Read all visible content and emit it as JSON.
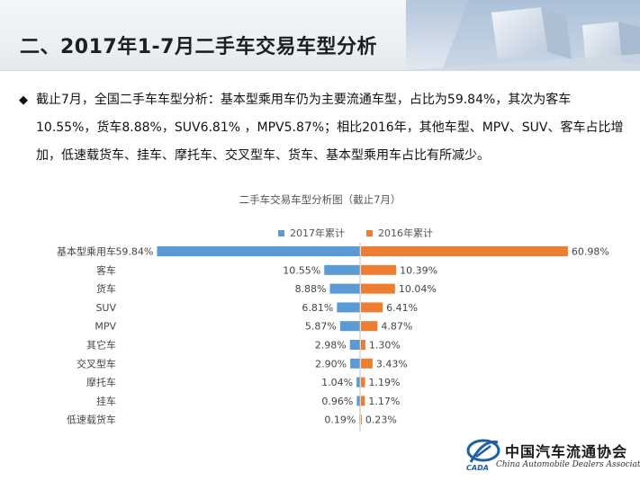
{
  "header": {
    "title": "二、2017年1-7月二手车交易车型分析"
  },
  "summary": {
    "text": "截止7月，全国二手车车型分析：基本型乘用车仍为主要流通车型，占比为59.84%，其次为客车10.55%，货车8.88%，SUV6.81% ，MPV5.87%；相比2016年，其他车型、MPV、SUV、客车占比增加，低速载货车、挂车、摩托车、交叉型车、货车、基本型乘用车占比有所减少。"
  },
  "colors": {
    "series_2017": "#5b9bd5",
    "series_2016": "#ed7d31"
  },
  "chart_data": {
    "type": "bar",
    "orientation": "horizontal-butterfly",
    "title": "二手车交易车型分析图（截止7月）",
    "categories": [
      "基本型乘用车",
      "客车",
      "货车",
      "SUV",
      "MPV",
      "其它车",
      "交叉型车",
      "摩托车",
      "挂车",
      "低速载货车"
    ],
    "series": [
      {
        "name": "2017年累计",
        "values": [
          59.84,
          10.55,
          8.88,
          6.81,
          5.87,
          2.98,
          2.9,
          1.04,
          0.96,
          0.19
        ]
      },
      {
        "name": "2016年累计",
        "values": [
          60.98,
          10.39,
          10.04,
          6.41,
          4.87,
          1.3,
          3.43,
          1.19,
          1.17,
          0.23
        ]
      }
    ],
    "value_suffix": "%",
    "legend_position": "top",
    "grid": false
  },
  "logo": {
    "name_cn": "中国汽车流通协会",
    "name_en": "China Automobile Dealers Association",
    "abbr": "CADA"
  }
}
